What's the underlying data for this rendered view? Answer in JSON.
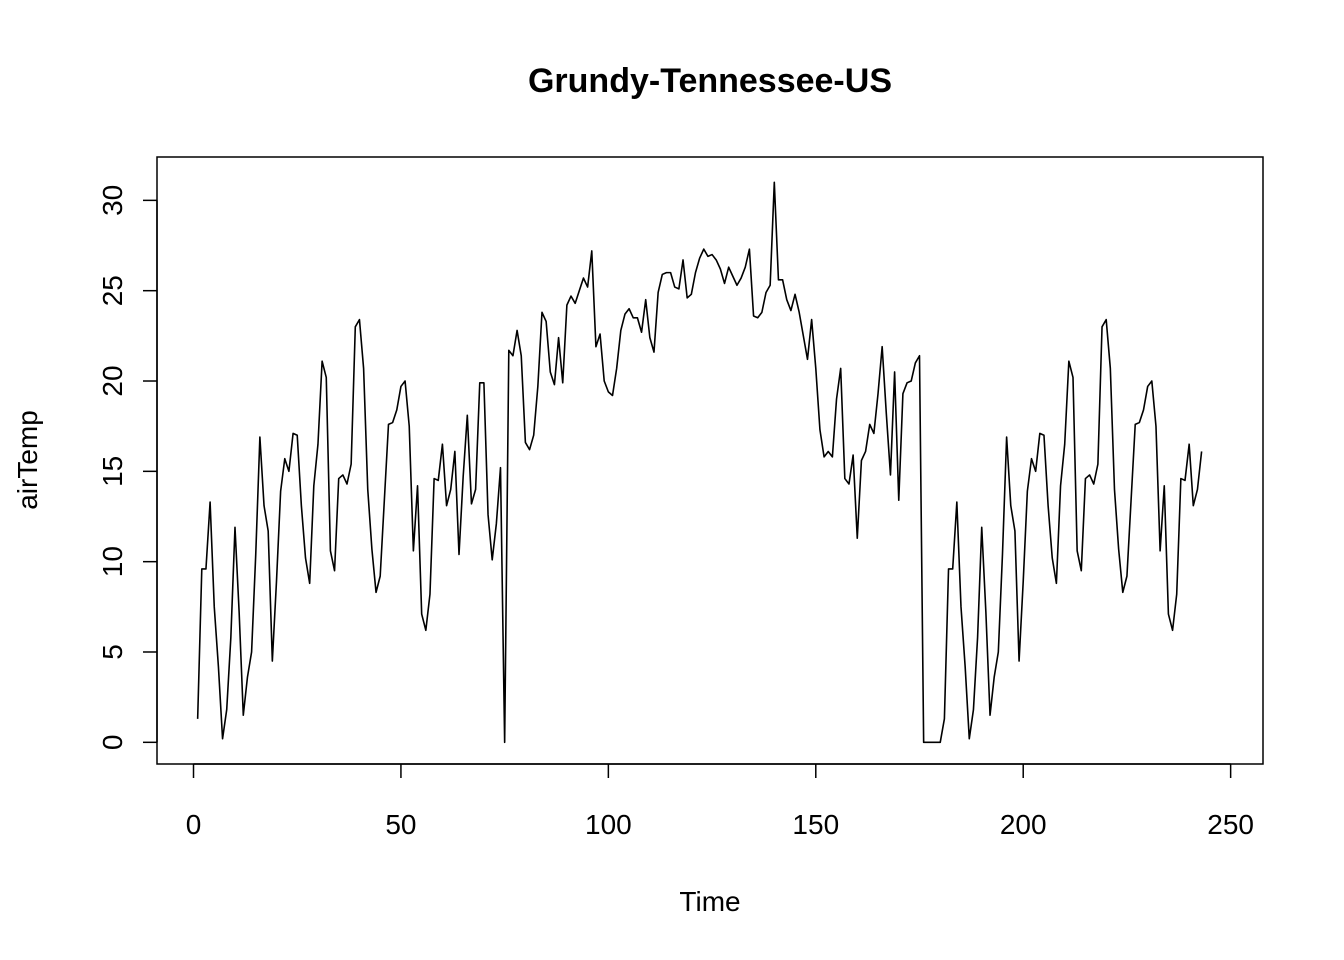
{
  "chart_data": {
    "type": "line",
    "title": "Grundy-Tennessee-US",
    "xlabel": "Time",
    "ylabel": "airTemp",
    "xlim": [
      -8.8,
      257.8
    ],
    "ylim": [
      -1.2,
      32.4
    ],
    "grid": false,
    "x_ticks": [
      0,
      50,
      100,
      150,
      200,
      250
    ],
    "y_ticks": [
      0,
      5,
      10,
      15,
      20,
      25,
      30
    ],
    "series": [
      {
        "values": [
          1.3,
          9.6,
          9.6,
          13.3,
          7.5,
          4.2,
          0.2,
          1.8,
          5.8,
          11.9,
          7.2,
          1.5,
          3.6,
          5,
          10.4,
          16.9,
          13.1,
          11.7,
          4.5,
          8.9,
          13.9,
          15.7,
          15,
          17.1,
          17,
          13.1,
          10.2,
          8.8,
          14.2,
          16.5,
          21.1,
          20.2,
          10.6,
          9.5,
          14.6,
          14.8,
          14.3,
          15.4,
          23,
          23.4,
          20.7,
          14,
          10.7,
          8.3,
          9.2,
          13.4,
          17.6,
          17.7,
          18.4,
          19.7,
          20,
          17.5,
          10.6,
          14.2,
          7.1,
          6.2,
          8.2,
          14.6,
          14.5,
          16.5,
          13.1,
          14,
          16.1,
          10.4,
          14.7,
          18.1,
          13.2,
          14,
          19.9,
          19.9,
          12.6,
          10.1,
          12.1,
          15.2,
          0,
          21.7,
          21.4,
          22.8,
          21.4,
          16.6,
          16.2,
          17,
          19.7,
          23.8,
          23.3,
          20.5,
          19.8,
          22.4,
          19.9,
          24.2,
          24.7,
          24.3,
          25,
          25.7,
          25.2,
          27.2,
          21.9,
          22.6,
          20,
          19.4,
          19.2,
          20.7,
          22.8,
          23.7,
          24,
          23.5,
          23.5,
          22.7,
          24.5,
          22.4,
          21.6,
          24.9,
          25.9,
          26,
          26,
          25.2,
          25.1,
          26.7,
          24.6,
          24.8,
          26,
          26.8,
          27.3,
          26.9,
          27,
          26.7,
          26.2,
          25.4,
          26.3,
          25.8,
          25.3,
          25.7,
          26.3,
          27.3,
          23.6,
          23.5,
          23.8,
          24.9,
          25.3,
          31,
          25.6,
          25.6,
          24.5,
          23.9,
          24.8,
          23.8,
          22.5,
          21.2,
          23.4,
          20.7,
          17.3,
          15.8,
          16.1,
          15.8,
          19,
          20.7,
          14.6,
          14.3,
          15.9,
          11.3,
          15.6,
          16.1,
          17.6,
          17.1,
          19.3,
          21.9,
          18.2,
          14.8,
          20.5,
          13.4,
          19.3,
          19.9,
          20,
          21,
          21.4,
          0,
          0,
          0,
          0,
          0,
          1.3,
          9.6,
          9.6,
          13.3,
          7.5,
          4.2,
          0.2,
          1.8,
          5.8,
          11.9,
          7.2,
          1.5,
          3.6,
          5,
          10.4,
          16.9,
          13.1,
          11.7,
          4.5,
          8.9,
          13.9,
          15.7,
          15,
          17.1,
          17,
          13.1,
          10.2,
          8.8,
          14.2,
          16.5,
          21.1,
          20.2,
          10.6,
          9.5,
          14.6,
          14.8,
          14.3,
          15.4,
          23,
          23.4,
          20.7,
          14,
          10.7,
          8.3,
          9.2,
          13.4,
          17.6,
          17.7,
          18.4,
          19.7,
          20,
          17.5,
          10.6,
          14.2,
          7.1,
          6.2,
          8.2,
          14.6,
          14.5,
          16.5,
          13.1,
          14,
          16.1
        ]
      }
    ]
  }
}
